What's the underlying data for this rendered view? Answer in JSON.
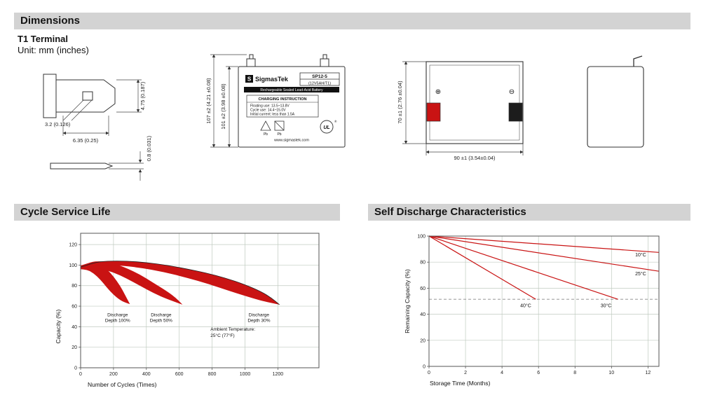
{
  "colors": {
    "section_bar": "#d3d3d3",
    "ink": "#141414",
    "red": "#c91313",
    "terminal_black": "#1c1c1c",
    "grid": "#c0cbc0",
    "frame": "#555555"
  },
  "header": {
    "title": "Dimensions"
  },
  "terminal": {
    "title": "T1 Terminal",
    "unit": "Unit: mm (inches)"
  },
  "drawings": {
    "tab": {
      "slot_width": "3.2 (0.126)",
      "tab_width": "6.35 (0.25)",
      "tab_height": "4.75 (0.187)",
      "plate_thickness": "0.8 (0.031)"
    },
    "front": {
      "height_total": "107 ±2 (4.21 ±0.08)",
      "height_case": "101 ±2 (3.98 ±0.08)",
      "label": {
        "logo_letter": "S",
        "brand": "SigmasTek",
        "model": "SP12-5",
        "rating": "(12V5AH/T1)",
        "tagline": "Rechargeable Sealed Lead-Acid Battery",
        "charging_title": "CHARGING INSTRUCTION",
        "charging_lines": [
          "Floating use: 13.5~13.8V",
          "Cycle use: 14.4~15.0V",
          "Initial current: less than 1.5A"
        ],
        "pb1": "Pb",
        "pb2": "Pb",
        "ul": "UL",
        "reg_mark": "®",
        "website": "www.sigmastek.com"
      }
    },
    "top": {
      "depth": "70 ±1 (2.76 ±0.04)",
      "width": "90 ±1 (3.54±0.04)",
      "plus_symbol": "⊕",
      "minus_symbol": "⊖"
    }
  },
  "sections": {
    "cycle": "Cycle Service Life",
    "self_discharge": "Self Discharge Characteristics"
  },
  "chart_data": [
    {
      "id": "cycle_service_life",
      "type": "area",
      "title": "Cycle Service Life",
      "xlabel": "Number of Cycles (Times)",
      "ylabel": "Capacity (%)",
      "xlim": [
        0,
        1450
      ],
      "ylim": [
        0,
        131
      ],
      "xticks": [
        0,
        200,
        400,
        600,
        800,
        1000,
        1200
      ],
      "yticks": [
        0,
        20,
        40,
        60,
        80,
        100,
        120
      ],
      "grid": true,
      "legend": "none",
      "annotation_lines": [
        "Ambient Temperature:",
        "25°C (77°F)"
      ],
      "annotation_xy": [
        790,
        36
      ],
      "bands": [
        {
          "name": "Discharge Depth 100%",
          "label_lines": [
            "Discharge",
            "Depth 100%"
          ],
          "label_xy": [
            225,
            50
          ],
          "upper": [
            [
              0,
              98.5
            ],
            [
              40,
              101.5
            ],
            [
              80,
              102.5
            ],
            [
              120,
              101
            ],
            [
              160,
              96
            ],
            [
              200,
              89
            ],
            [
              240,
              80
            ],
            [
              270,
              71
            ],
            [
              300,
              62
            ]
          ],
          "lower": [
            [
              0,
              96
            ],
            [
              40,
              95.5
            ],
            [
              80,
              92
            ],
            [
              120,
              86
            ],
            [
              160,
              78
            ],
            [
              200,
              71
            ],
            [
              240,
              66
            ],
            [
              270,
              63.5
            ],
            [
              300,
              62
            ]
          ]
        },
        {
          "name": "Discharge Depth 50%",
          "label_lines": [
            "Discharge",
            "Depth 50%"
          ],
          "label_xy": [
            490,
            50
          ],
          "upper": [
            [
              0,
              99.5
            ],
            [
              60,
              103
            ],
            [
              120,
              104
            ],
            [
              200,
              102
            ],
            [
              280,
              97
            ],
            [
              360,
              91
            ],
            [
              440,
              83
            ],
            [
              530,
              74
            ],
            [
              580,
              68
            ],
            [
              620,
              61.5
            ]
          ],
          "lower": [
            [
              0,
              97
            ],
            [
              60,
              97.5
            ],
            [
              120,
              96.5
            ],
            [
              200,
              93
            ],
            [
              280,
              87
            ],
            [
              360,
              80
            ],
            [
              440,
              73
            ],
            [
              530,
              66.5
            ],
            [
              620,
              61.5
            ]
          ]
        },
        {
          "name": "Discharge Depth 30%",
          "label_lines": [
            "Discharge",
            "Depth 30%"
          ],
          "label_xy": [
            1085,
            50
          ],
          "outline": true,
          "upper": [
            [
              0,
              98
            ],
            [
              80,
              102.5
            ],
            [
              160,
              104
            ],
            [
              280,
              104
            ],
            [
              400,
              102.5
            ],
            [
              520,
              100
            ],
            [
              640,
              96.5
            ],
            [
              760,
              92.5
            ],
            [
              880,
              87.5
            ],
            [
              1000,
              81
            ],
            [
              1100,
              74
            ],
            [
              1160,
              68
            ],
            [
              1210,
              61.5
            ]
          ],
          "lower": [
            [
              0,
              96.5
            ],
            [
              100,
              99.5
            ],
            [
              220,
              100
            ],
            [
              360,
              97.5
            ],
            [
              500,
              93.5
            ],
            [
              640,
              88
            ],
            [
              780,
              81.5
            ],
            [
              920,
              74
            ],
            [
              1040,
              68
            ],
            [
              1130,
              64
            ],
            [
              1210,
              61.5
            ]
          ]
        }
      ]
    },
    {
      "id": "self_discharge",
      "type": "line",
      "title": "Self Discharge Characteristics",
      "xlabel": "Storage Time (Months)",
      "ylabel": "Remaining Capacity (%)",
      "xlim": [
        0,
        12.6
      ],
      "ylim": [
        0,
        100
      ],
      "xticks": [
        0,
        2,
        4,
        6,
        8,
        10,
        12
      ],
      "yticks": [
        0,
        20,
        40,
        60,
        80,
        100
      ],
      "grid": true,
      "dashed_y": 51.5,
      "series": [
        {
          "name": "10°C",
          "points": [
            [
              0,
              100
            ],
            [
              12.6,
              87.5
            ]
          ],
          "label_xy": [
            11.6,
            84.5
          ]
        },
        {
          "name": "25°C",
          "points": [
            [
              0,
              100
            ],
            [
              12.6,
              73
            ]
          ],
          "label_xy": [
            11.6,
            70
          ]
        },
        {
          "name": "30°C",
          "points": [
            [
              0,
              100
            ],
            [
              10.35,
              51.5
            ]
          ],
          "label_xy": [
            9.7,
            45.5
          ]
        },
        {
          "name": "40°C",
          "points": [
            [
              0,
              100
            ],
            [
              5.85,
              51.5
            ]
          ],
          "label_xy": [
            5.3,
            45.5
          ]
        }
      ]
    }
  ]
}
